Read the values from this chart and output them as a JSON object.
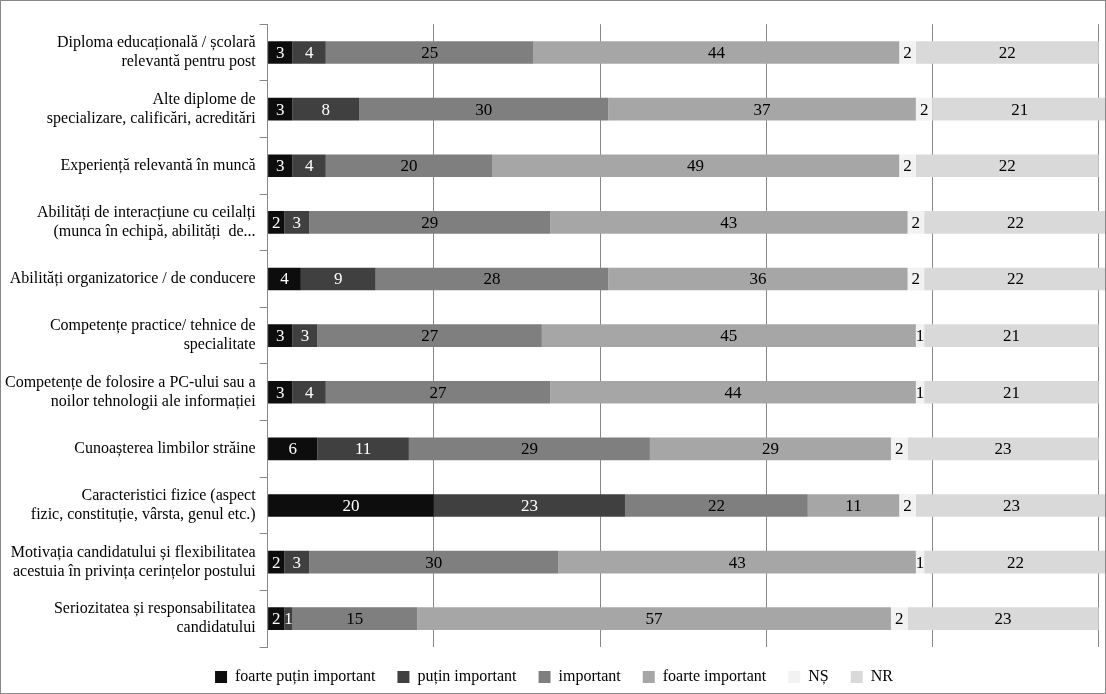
{
  "chart_data": {
    "type": "bar",
    "orientation": "horizontal",
    "stacked": true,
    "data_labels": true,
    "grid": "x",
    "legend": "bottom",
    "tick_labels": "y",
    "categories": [
      "Diploma educațională / școlară\nrelevantă pentru post",
      "Alte diplome de\nspecializare, calificări, acreditări",
      "Experiență relevantă în muncă",
      "Abilități de interacțiune cu ceilalți\n(munca în echipă, abilități  de...",
      "Abilități organizatorice / de conducere",
      "Competențe practice/ tehnice de\nspecialitate",
      "Competențe de folosire a PC-ului sau a\nnoilor tehnologii ale informației",
      "Cunoașterea limbilor străine",
      "Caracteristici fizice (aspect\nfizic, constituție, vârsta, genul etc.)",
      "Motivația candidatului și flexibilitatea\nacestuia în privința cerințelor postului",
      "Seriozitatea și responsabilitatea\ncandidatului"
    ],
    "xlim": [
      0,
      101
    ],
    "xticks": [
      {
        "value": 0,
        "label": null
      },
      {
        "value": 20,
        "label": null
      },
      {
        "value": 40,
        "label": null
      },
      {
        "value": 60,
        "label": null
      },
      {
        "value": 80,
        "label": null
      },
      {
        "value": 100,
        "label": null
      }
    ],
    "series": [
      {
        "name": "foarte puțin important",
        "color": "#0d0d0d",
        "values": [
          3,
          3,
          3,
          2,
          4,
          3,
          3,
          6,
          20,
          2,
          2
        ]
      },
      {
        "name": "puțin important",
        "color": "#404040",
        "values": [
          4,
          8,
          4,
          3,
          9,
          3,
          4,
          11,
          23,
          3,
          1
        ]
      },
      {
        "name": "important",
        "color": "#7f7f7f",
        "values": [
          25,
          30,
          20,
          29,
          28,
          27,
          27,
          29,
          22,
          30,
          15
        ]
      },
      {
        "name": "foarte important",
        "color": "#a6a6a6",
        "values": [
          44,
          37,
          49,
          43,
          36,
          45,
          44,
          29,
          11,
          43,
          57
        ]
      },
      {
        "name": "NȘ",
        "color": "#f2f2f2",
        "values": [
          2,
          2,
          2,
          2,
          2,
          1,
          1,
          2,
          2,
          1,
          2
        ]
      },
      {
        "name": "NR",
        "color": "#d9d9d9",
        "values": [
          22,
          21,
          22,
          22,
          22,
          21,
          21,
          23,
          23,
          22,
          23
        ]
      }
    ]
  }
}
